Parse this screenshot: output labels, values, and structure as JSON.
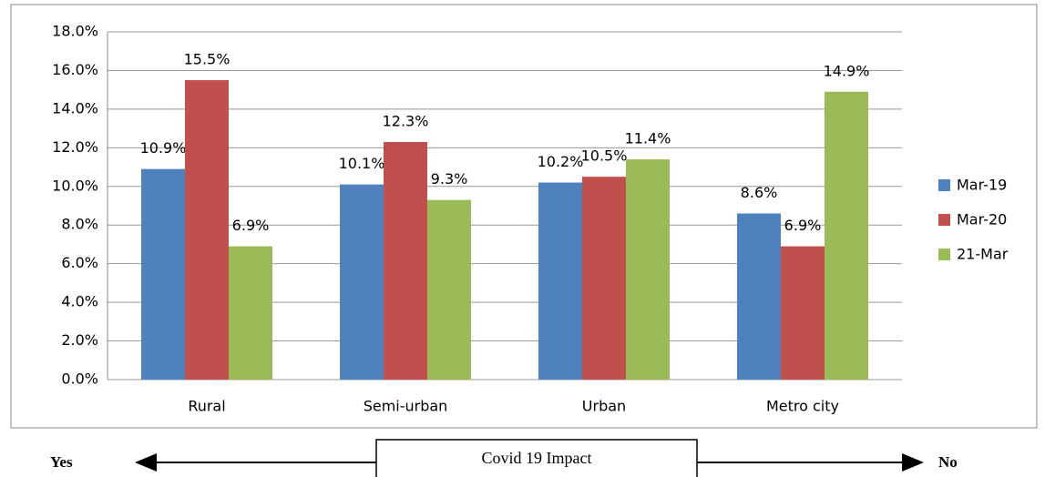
{
  "chart_data": {
    "type": "bar",
    "categories": [
      "Rural",
      "Semi-urban",
      "Urban",
      "Metro city"
    ],
    "series": [
      {
        "name": "Mar-19",
        "color": "#4f81bd",
        "values": [
          10.9,
          10.1,
          10.2,
          8.6
        ],
        "value_labels": [
          "10.9%",
          "10.1%",
          "10.2%",
          "8.6%"
        ]
      },
      {
        "name": "Mar-20",
        "color": "#c0504d",
        "values": [
          15.5,
          12.3,
          10.5,
          6.9
        ],
        "value_labels": [
          "15.5%",
          "12.3%",
          "10.5%",
          "6.9%"
        ]
      },
      {
        "name": "21-Mar",
        "color": "#9bbb59",
        "values": [
          6.9,
          9.3,
          11.4,
          14.9
        ],
        "value_labels": [
          "6.9%",
          "9.3%",
          "11.4%",
          "14.9%"
        ]
      }
    ],
    "ylim": [
      0,
      18
    ],
    "yticks": [
      {
        "value": 0,
        "label": "0.0%"
      },
      {
        "value": 2,
        "label": "2.0%"
      },
      {
        "value": 4,
        "label": "4.0%"
      },
      {
        "value": 6,
        "label": "6.0%"
      },
      {
        "value": 8,
        "label": "8.0%"
      },
      {
        "value": 10,
        "label": "10.0%"
      },
      {
        "value": 12,
        "label": "12.0%"
      },
      {
        "value": 14,
        "label": "14.0%"
      },
      {
        "value": 16,
        "label": "16.0%"
      },
      {
        "value": 18,
        "label": "18.0%"
      }
    ],
    "grid": true,
    "legend": "right",
    "annotations": [
      "Yes",
      "Covid 19 Impact",
      "No"
    ]
  }
}
